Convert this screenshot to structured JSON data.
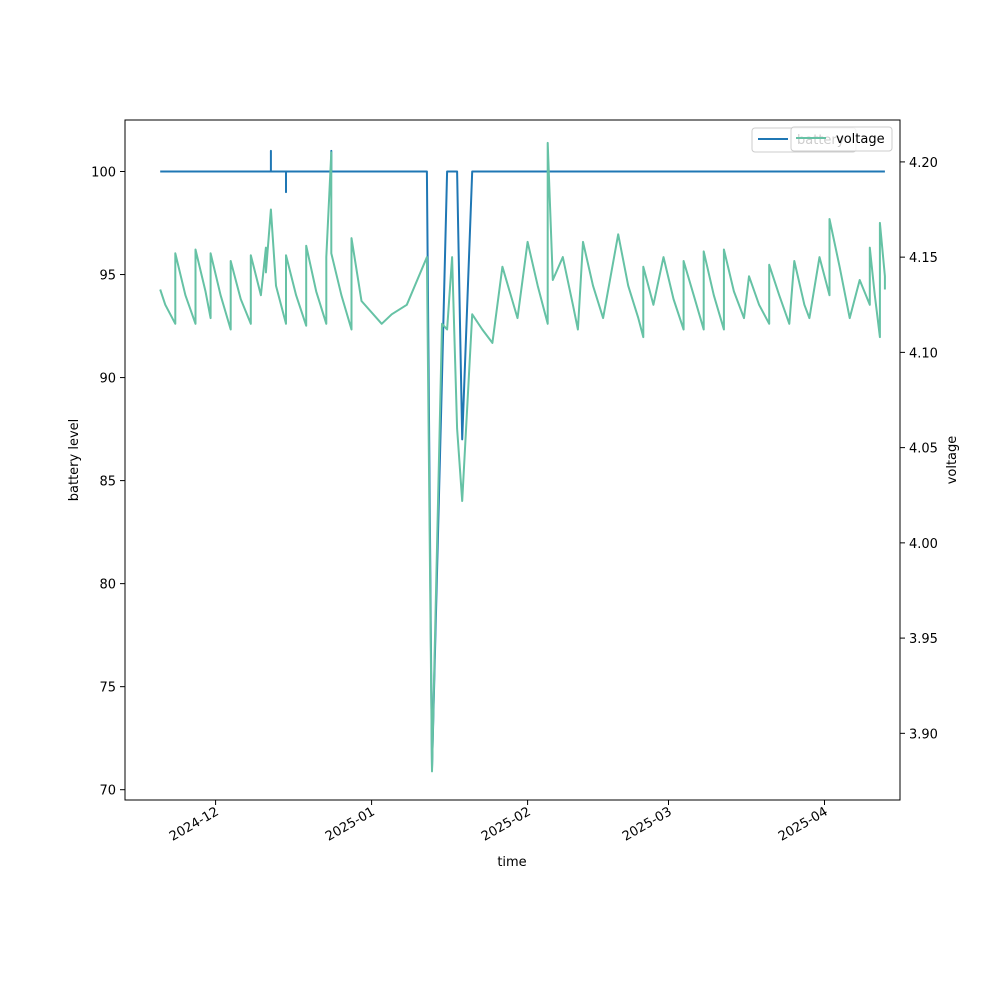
{
  "chart_data": {
    "type": "line",
    "xlabel": "time",
    "ylabel_left": "battery level",
    "ylabel_right": "voltage",
    "x_range": [
      "2024-11-13",
      "2025-04-16"
    ],
    "ylim_left": [
      69.5,
      102.5
    ],
    "ylim_right": [
      3.865,
      4.222
    ],
    "x_ticks": [
      "2024-12",
      "2025-01",
      "2025-02",
      "2025-03",
      "2025-04"
    ],
    "y_ticks_left": [
      70,
      75,
      80,
      85,
      90,
      95,
      100
    ],
    "y_ticks_right": [
      "3.90",
      "3.95",
      "4.00",
      "4.05",
      "4.10",
      "4.15",
      "4.20"
    ],
    "grid": false,
    "legend_placement": "top-right",
    "legends": [
      {
        "entries": [
          {
            "label": "battery",
            "color": "#1f77b4"
          }
        ]
      },
      {
        "entries": [
          {
            "label": "voltage",
            "color": "#66c2a5"
          }
        ]
      }
    ],
    "series": [
      {
        "name": "battery",
        "axis": "left",
        "color": "#1f77b4",
        "points": [
          [
            "2024-11-20",
            100
          ],
          [
            "2024-12-12",
            100
          ],
          [
            "2024-12-12",
            101
          ],
          [
            "2024-12-12",
            100
          ],
          [
            "2024-12-15",
            100
          ],
          [
            "2024-12-15",
            99
          ],
          [
            "2024-12-15",
            100
          ],
          [
            "2024-12-24",
            100
          ],
          [
            "2024-12-24",
            101
          ],
          [
            "2024-12-24",
            100
          ],
          [
            "2025-01-12",
            100
          ],
          [
            "2025-01-13",
            71
          ],
          [
            "2025-01-15",
            90
          ],
          [
            "2025-01-16",
            100
          ],
          [
            "2025-01-18",
            100
          ],
          [
            "2025-01-19",
            87
          ],
          [
            "2025-01-21",
            100
          ],
          [
            "2025-04-13",
            100
          ]
        ]
      },
      {
        "name": "voltage",
        "axis": "right",
        "color": "#66c2a5",
        "points": [
          [
            "2024-11-20",
            4.133
          ],
          [
            "2024-11-21",
            4.125
          ],
          [
            "2024-11-23",
            4.115
          ],
          [
            "2024-11-23",
            4.152
          ],
          [
            "2024-11-25",
            4.13
          ],
          [
            "2024-11-27",
            4.115
          ],
          [
            "2024-11-27",
            4.154
          ],
          [
            "2024-11-29",
            4.132
          ],
          [
            "2024-11-30",
            4.118
          ],
          [
            "2024-11-30",
            4.152
          ],
          [
            "2024-12-02",
            4.13
          ],
          [
            "2024-12-04",
            4.112
          ],
          [
            "2024-12-04",
            4.148
          ],
          [
            "2024-12-06",
            4.128
          ],
          [
            "2024-12-08",
            4.115
          ],
          [
            "2024-12-08",
            4.151
          ],
          [
            "2024-12-10",
            4.13
          ],
          [
            "2024-12-11",
            4.155
          ],
          [
            "2024-12-11",
            4.142
          ],
          [
            "2024-12-12",
            4.175
          ],
          [
            "2024-12-13",
            4.135
          ],
          [
            "2024-12-15",
            4.115
          ],
          [
            "2024-12-15",
            4.151
          ],
          [
            "2024-12-17",
            4.13
          ],
          [
            "2024-12-19",
            4.114
          ],
          [
            "2024-12-19",
            4.156
          ],
          [
            "2024-12-21",
            4.132
          ],
          [
            "2024-12-23",
            4.115
          ],
          [
            "2024-12-23",
            4.15
          ],
          [
            "2024-12-24",
            4.205
          ],
          [
            "2024-12-24",
            4.152
          ],
          [
            "2024-12-26",
            4.13
          ],
          [
            "2024-12-28",
            4.112
          ],
          [
            "2024-12-28",
            4.16
          ],
          [
            "2024-12-30",
            4.127
          ],
          [
            "2025-01-03",
            4.115
          ],
          [
            "2025-01-05",
            4.12
          ],
          [
            "2025-01-08",
            4.125
          ],
          [
            "2025-01-12",
            4.15
          ],
          [
            "2025-01-13",
            3.88
          ],
          [
            "2025-01-15",
            4.115
          ],
          [
            "2025-01-16",
            4.112
          ],
          [
            "2025-01-17",
            4.15
          ],
          [
            "2025-01-18",
            4.06
          ],
          [
            "2025-01-19",
            4.022
          ],
          [
            "2025-01-21",
            4.12
          ],
          [
            "2025-01-23",
            4.112
          ],
          [
            "2025-01-25",
            4.105
          ],
          [
            "2025-01-27",
            4.145
          ],
          [
            "2025-01-30",
            4.118
          ],
          [
            "2025-02-01",
            4.158
          ],
          [
            "2025-02-03",
            4.135
          ],
          [
            "2025-02-05",
            4.115
          ],
          [
            "2025-02-05",
            4.21
          ],
          [
            "2025-02-06",
            4.138
          ],
          [
            "2025-02-08",
            4.15
          ],
          [
            "2025-02-10",
            4.125
          ],
          [
            "2025-02-11",
            4.112
          ],
          [
            "2025-02-12",
            4.158
          ],
          [
            "2025-02-14",
            4.135
          ],
          [
            "2025-02-16",
            4.118
          ],
          [
            "2025-02-19",
            4.162
          ],
          [
            "2025-02-21",
            4.135
          ],
          [
            "2025-02-23",
            4.118
          ],
          [
            "2025-02-24",
            4.108
          ],
          [
            "2025-02-24",
            4.145
          ],
          [
            "2025-02-26",
            4.125
          ],
          [
            "2025-02-28",
            4.15
          ],
          [
            "2025-03-02",
            4.128
          ],
          [
            "2025-03-04",
            4.112
          ],
          [
            "2025-03-04",
            4.148
          ],
          [
            "2025-03-06",
            4.13
          ],
          [
            "2025-03-08",
            4.112
          ],
          [
            "2025-03-08",
            4.153
          ],
          [
            "2025-03-10",
            4.13
          ],
          [
            "2025-03-12",
            4.112
          ],
          [
            "2025-03-12",
            4.154
          ],
          [
            "2025-03-14",
            4.132
          ],
          [
            "2025-03-16",
            4.118
          ],
          [
            "2025-03-17",
            4.14
          ],
          [
            "2025-03-19",
            4.125
          ],
          [
            "2025-03-21",
            4.115
          ],
          [
            "2025-03-21",
            4.146
          ],
          [
            "2025-03-23",
            4.13
          ],
          [
            "2025-03-25",
            4.115
          ],
          [
            "2025-03-26",
            4.148
          ],
          [
            "2025-03-28",
            4.125
          ],
          [
            "2025-03-29",
            4.118
          ],
          [
            "2025-03-31",
            4.15
          ],
          [
            "2025-04-02",
            4.13
          ],
          [
            "2025-04-02",
            4.17
          ],
          [
            "2025-04-04",
            4.145
          ],
          [
            "2025-04-06",
            4.118
          ],
          [
            "2025-04-08",
            4.138
          ],
          [
            "2025-04-10",
            4.125
          ],
          [
            "2025-04-10",
            4.155
          ],
          [
            "2025-04-11",
            4.13
          ],
          [
            "2025-04-12",
            4.108
          ],
          [
            "2025-04-12",
            4.168
          ],
          [
            "2025-04-13",
            4.14
          ],
          [
            "2025-04-13",
            4.133
          ]
        ]
      }
    ]
  }
}
